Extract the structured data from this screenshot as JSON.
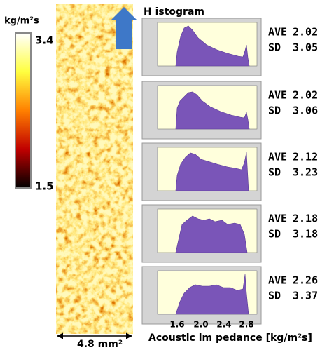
{
  "colorbar": {
    "unit": "kg/m²s",
    "max": 3.4,
    "min": 1.5
  },
  "histogram_title": "H istogram",
  "ave_label": "AVE",
  "sd_label": "SD",
  "rows": [
    {
      "ave": 2.02,
      "sd": 3.05
    },
    {
      "ave": 2.02,
      "sd": 3.06
    },
    {
      "ave": 2.12,
      "sd": 3.23
    },
    {
      "ave": 2.18,
      "sd": 3.18
    },
    {
      "ave": 2.26,
      "sd": 3.37
    }
  ],
  "x_ticks": [
    "1.6",
    "2.0",
    "2.4",
    "2.8"
  ],
  "x_label": "Acoustic im pedance [kg/m²s]",
  "scale": "4.8 mm²"
}
